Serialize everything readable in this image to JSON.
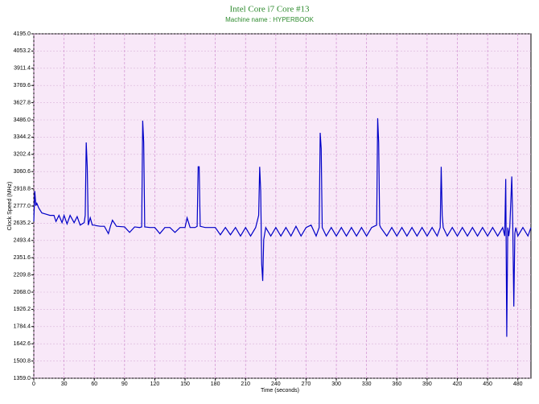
{
  "chart_data": {
    "type": "line",
    "title": "Intel Core i7 Core #13",
    "subtitle": "Machine name : HYPERBOOK",
    "x_label": "Time (seconds)",
    "y_label": "Clock Speed (MHz)",
    "xlim": [
      0,
      493
    ],
    "ylim": [
      1359,
      4195
    ],
    "xticks": [
      0,
      30,
      60,
      90,
      120,
      150,
      180,
      210,
      240,
      270,
      300,
      330,
      360,
      390,
      420,
      450,
      480
    ],
    "yticks": [
      {
        "value": 1359,
        "label": "1359.0"
      },
      1500.8,
      1642.6,
      1784.4,
      1926.2,
      {
        "value": 2068,
        "label": "2068.0"
      },
      2209.8,
      2351.6,
      2493.4,
      2635.2,
      {
        "value": 2777,
        "label": "2777.0"
      },
      2918.8,
      3060.6,
      3202.4,
      3344.2,
      {
        "value": 3486,
        "label": "3486.0"
      },
      3627.8,
      3769.6,
      3911.4,
      4053.2,
      {
        "value": 4195,
        "label": "4195.0"
      }
    ],
    "grid": true,
    "series": [
      {
        "color": "#0000c8",
        "x": [
          0,
          1,
          2,
          3,
          5,
          8,
          12,
          16,
          20,
          22,
          25,
          28,
          30,
          33,
          36,
          40,
          43,
          46,
          50,
          51,
          52,
          53,
          54,
          56,
          58,
          60,
          62,
          66,
          70,
          74,
          76,
          78,
          82,
          90,
          95,
          100,
          105,
          107,
          108,
          109,
          110,
          115,
          120,
          125,
          130,
          135,
          140,
          145,
          150,
          152,
          155,
          160,
          162,
          163,
          164,
          165,
          170,
          175,
          180,
          185,
          190,
          195,
          200,
          205,
          210,
          215,
          220,
          223,
          224,
          225,
          226,
          227,
          228,
          230,
          235,
          240,
          245,
          250,
          255,
          260,
          265,
          270,
          275,
          280,
          283,
          284,
          285,
          286,
          290,
          295,
          300,
          305,
          310,
          315,
          320,
          325,
          330,
          335,
          340,
          341,
          342,
          343,
          344,
          350,
          355,
          360,
          365,
          370,
          375,
          380,
          385,
          390,
          395,
          400,
          403,
          404,
          405,
          406,
          410,
          415,
          420,
          425,
          430,
          435,
          440,
          445,
          450,
          455,
          460,
          465,
          467,
          468,
          469,
          470,
          471,
          472,
          474,
          475,
          476,
          477,
          478,
          480,
          485,
          490,
          493
        ],
        "values": [
          2650,
          2900,
          2780,
          2800,
          2760,
          2720,
          2710,
          2700,
          2700,
          2650,
          2700,
          2640,
          2700,
          2630,
          2700,
          2640,
          2690,
          2620,
          2640,
          2700,
          3300,
          3100,
          2620,
          2680,
          2620,
          2620,
          2615,
          2610,
          2610,
          2550,
          2610,
          2660,
          2610,
          2605,
          2560,
          2605,
          2600,
          2605,
          3480,
          3300,
          2605,
          2600,
          2600,
          2550,
          2600,
          2600,
          2560,
          2600,
          2600,
          2680,
          2600,
          2600,
          2610,
          3100,
          3100,
          2610,
          2600,
          2600,
          2600,
          2540,
          2600,
          2540,
          2600,
          2530,
          2600,
          2530,
          2600,
          2700,
          3100,
          2900,
          2300,
          2160,
          2500,
          2600,
          2530,
          2600,
          2530,
          2600,
          2530,
          2610,
          2530,
          2600,
          2620,
          2530,
          2600,
          3380,
          3250,
          2600,
          2530,
          2600,
          2530,
          2600,
          2530,
          2600,
          2530,
          2600,
          2530,
          2600,
          2620,
          3500,
          3300,
          2620,
          2600,
          2530,
          2600,
          2530,
          2600,
          2530,
          2600,
          2530,
          2600,
          2530,
          2600,
          2530,
          2600,
          3100,
          2700,
          2600,
          2530,
          2600,
          2530,
          2600,
          2530,
          2600,
          2530,
          2600,
          2530,
          2600,
          2530,
          2600,
          2530,
          3000,
          1700,
          2600,
          2530,
          2600,
          3020,
          2600,
          1950,
          2550,
          2600,
          2530,
          2600,
          2530,
          2600
        ]
      }
    ]
  }
}
